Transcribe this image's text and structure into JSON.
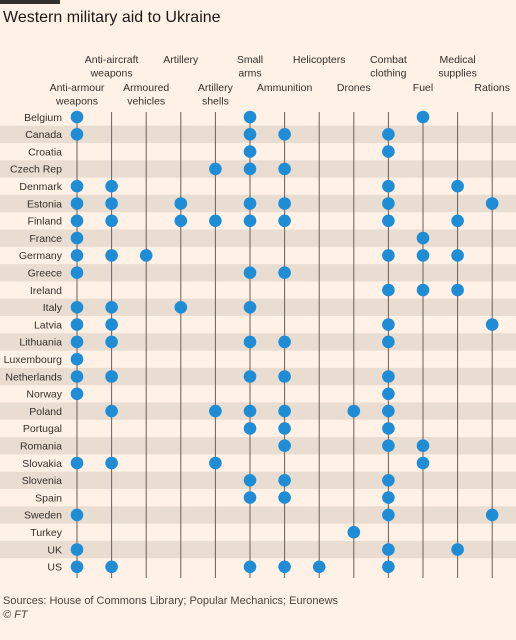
{
  "title": "Western military aid to Ukraine",
  "footer": {
    "sources": "Sources: House of Commons Library; Popular Mechanics; Euronews",
    "copyright": "© FT"
  },
  "colors": {
    "background": "#fff1e5",
    "band": "#e9dcd0",
    "dot": "#1f8dd6",
    "gridline": "#66605c",
    "text": "#33302e"
  },
  "chart_data": {
    "type": "scatter",
    "categories": [
      "Anti-armour weapons",
      "Anti-aircraft weapons",
      "Armoured vehicles",
      "Artillery",
      "Artillery shells",
      "Small arms",
      "Ammunition",
      "Helicopters",
      "Drones",
      "Combat clothing",
      "Fuel",
      "Medical supplies",
      "Rations"
    ],
    "column_label_lines": [
      [
        "Anti-armour",
        "weapons"
      ],
      [
        "Anti-aircraft",
        "weapons"
      ],
      [
        "Armoured",
        "vehicles"
      ],
      [
        "Artillery"
      ],
      [
        "Artillery",
        "shells"
      ],
      [
        "Small",
        "arms"
      ],
      [
        "Ammunition"
      ],
      [
        "Helicopters"
      ],
      [
        "Drones"
      ],
      [
        "Combat",
        "clothing"
      ],
      [
        "Fuel"
      ],
      [
        "Medical",
        "supplies"
      ],
      [
        "Rations"
      ]
    ],
    "countries": [
      {
        "name": "Belgium",
        "aid": [
          "Anti-armour weapons",
          "Small arms",
          "Fuel"
        ]
      },
      {
        "name": "Canada",
        "aid": [
          "Anti-armour weapons",
          "Small arms",
          "Ammunition",
          "Combat clothing"
        ]
      },
      {
        "name": "Croatia",
        "aid": [
          "Small arms",
          "Combat clothing"
        ]
      },
      {
        "name": "Czech Rep",
        "aid": [
          "Artillery shells",
          "Small arms",
          "Ammunition"
        ]
      },
      {
        "name": "Denmark",
        "aid": [
          "Anti-armour weapons",
          "Anti-aircraft weapons",
          "Combat clothing",
          "Medical supplies"
        ]
      },
      {
        "name": "Estonia",
        "aid": [
          "Anti-armour weapons",
          "Anti-aircraft weapons",
          "Artillery",
          "Small arms",
          "Ammunition",
          "Combat clothing",
          "Rations"
        ]
      },
      {
        "name": "Finland",
        "aid": [
          "Anti-armour weapons",
          "Anti-aircraft weapons",
          "Artillery",
          "Artillery shells",
          "Small arms",
          "Ammunition",
          "Combat clothing",
          "Medical supplies"
        ]
      },
      {
        "name": "France",
        "aid": [
          "Anti-armour weapons",
          "Fuel"
        ]
      },
      {
        "name": "Germany",
        "aid": [
          "Anti-armour weapons",
          "Anti-aircraft weapons",
          "Armoured vehicles",
          "Combat clothing",
          "Fuel",
          "Medical supplies"
        ]
      },
      {
        "name": "Greece",
        "aid": [
          "Anti-armour weapons",
          "Small arms",
          "Ammunition"
        ]
      },
      {
        "name": "Ireland",
        "aid": [
          "Combat clothing",
          "Fuel",
          "Medical supplies"
        ]
      },
      {
        "name": "Italy",
        "aid": [
          "Anti-armour weapons",
          "Anti-aircraft weapons",
          "Artillery",
          "Small arms"
        ]
      },
      {
        "name": "Latvia",
        "aid": [
          "Anti-armour weapons",
          "Anti-aircraft weapons",
          "Combat clothing",
          "Rations"
        ]
      },
      {
        "name": "Lithuania",
        "aid": [
          "Anti-armour weapons",
          "Anti-aircraft weapons",
          "Small arms",
          "Ammunition",
          "Combat clothing"
        ]
      },
      {
        "name": "Luxembourg",
        "aid": [
          "Anti-armour weapons"
        ]
      },
      {
        "name": "Netherlands",
        "aid": [
          "Anti-armour weapons",
          "Anti-aircraft weapons",
          "Small arms",
          "Ammunition",
          "Combat clothing"
        ]
      },
      {
        "name": "Norway",
        "aid": [
          "Anti-armour weapons",
          "Combat clothing"
        ]
      },
      {
        "name": "Poland",
        "aid": [
          "Anti-aircraft weapons",
          "Artillery shells",
          "Small arms",
          "Ammunition",
          "Drones",
          "Combat clothing"
        ]
      },
      {
        "name": "Portugal",
        "aid": [
          "Small arms",
          "Ammunition",
          "Combat clothing"
        ]
      },
      {
        "name": "Romania",
        "aid": [
          "Ammunition",
          "Combat clothing",
          "Fuel"
        ]
      },
      {
        "name": "Slovakia",
        "aid": [
          "Anti-armour weapons",
          "Anti-aircraft weapons",
          "Artillery shells",
          "Fuel"
        ]
      },
      {
        "name": "Slovenia",
        "aid": [
          "Small arms",
          "Ammunition",
          "Combat clothing"
        ]
      },
      {
        "name": "Spain",
        "aid": [
          "Small arms",
          "Ammunition",
          "Combat clothing"
        ]
      },
      {
        "name": "Sweden",
        "aid": [
          "Anti-armour weapons",
          "Combat clothing",
          "Rations"
        ]
      },
      {
        "name": "Turkey",
        "aid": [
          "Drones"
        ]
      },
      {
        "name": "UK",
        "aid": [
          "Anti-armour weapons",
          "Combat clothing",
          "Medical supplies"
        ]
      },
      {
        "name": "US",
        "aid": [
          "Anti-armour weapons",
          "Anti-aircraft weapons",
          "Small arms",
          "Ammunition",
          "Helicopters",
          "Combat clothing"
        ]
      }
    ]
  }
}
